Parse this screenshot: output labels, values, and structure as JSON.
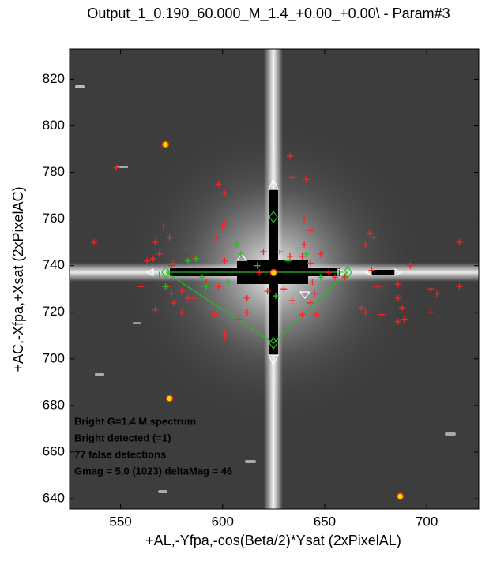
{
  "chart_data": {
    "type": "scatter",
    "title": "Output_1_0.190_60.000_M_1.4_+0.00_+0.00\\ - Param#3",
    "x_label": "+AL,-Yfpa,-cos(Beta/2)*Ysat (2xPixelAL)",
    "y_label": "+AC,-Xfpa,+Xsat (2xPixelAC)",
    "annotations": [
      "Bright G=1.4 M spectrum",
      "Bright detected (=1)",
      "77 false detections",
      "Gmag = 5.0 (1023) deltaMag =  46"
    ],
    "xlim": [
      525,
      725.5
    ],
    "ylim": [
      635.6,
      833
    ],
    "xticks": [
      550,
      600,
      650,
      700
    ],
    "yticks": [
      640,
      660,
      680,
      700,
      720,
      740,
      760,
      780,
      800,
      820
    ],
    "series": [
      {
        "color": "#ff2020",
        "marker": "+",
        "x": [
          548,
          537,
          560,
          563,
          566,
          567,
          571,
          569,
          574,
          576,
          575,
          576,
          567,
          582,
          598,
          601,
          601,
          600,
          601,
          601,
          601,
          586,
          618,
          633,
          634,
          641,
          640,
          643,
          633,
          639,
          643,
          644,
          643,
          639,
          646,
          634,
          630,
          612,
          622,
          670,
          672,
          674,
          673,
          668,
          670,
          678,
          686,
          686,
          689,
          686,
          692,
          688,
          702,
          702,
          705,
          716,
          716,
          676,
          608,
          612,
          598,
          596,
          620,
          592,
          586,
          583,
          573,
          580,
          575,
          648,
          652,
          660,
          645,
          655,
          640,
          597,
          580
        ],
        "values": [
          782,
          750,
          731,
          742,
          743,
          750,
          757,
          745,
          752,
          741,
          728,
          724,
          721,
          747,
          775,
          771,
          758,
          757,
          742,
          711,
          709,
          744,
          737,
          787,
          778,
          777,
          760,
          755,
          744,
          744,
          741,
          733,
          724,
          719,
          719,
          725,
          730,
          726,
          729,
          749,
          754,
          752,
          738,
          722,
          720,
          719,
          732,
          726,
          717,
          716,
          740,
          722,
          730,
          720,
          728,
          731,
          750,
          731,
          717,
          720,
          731,
          719,
          746,
          733,
          726,
          726,
          731,
          729,
          740,
          745,
          737,
          735,
          728,
          735,
          749,
          752,
          720
        ]
      },
      {
        "color": "#20c020",
        "marker": "+",
        "x": [
          572,
          583,
          587,
          590,
          607,
          609,
          617,
          628,
          632,
          641,
          626,
          603,
          592,
          648,
          569
        ],
        "values": [
          731,
          742,
          743,
          735,
          749,
          745,
          740,
          746,
          742,
          745,
          727,
          733,
          731,
          735,
          736
        ]
      },
      {
        "color": "#ffd800",
        "marker": "o",
        "x": [
          572,
          574,
          687,
          625
        ],
        "values": [
          792,
          683,
          641,
          737
        ]
      }
    ]
  }
}
